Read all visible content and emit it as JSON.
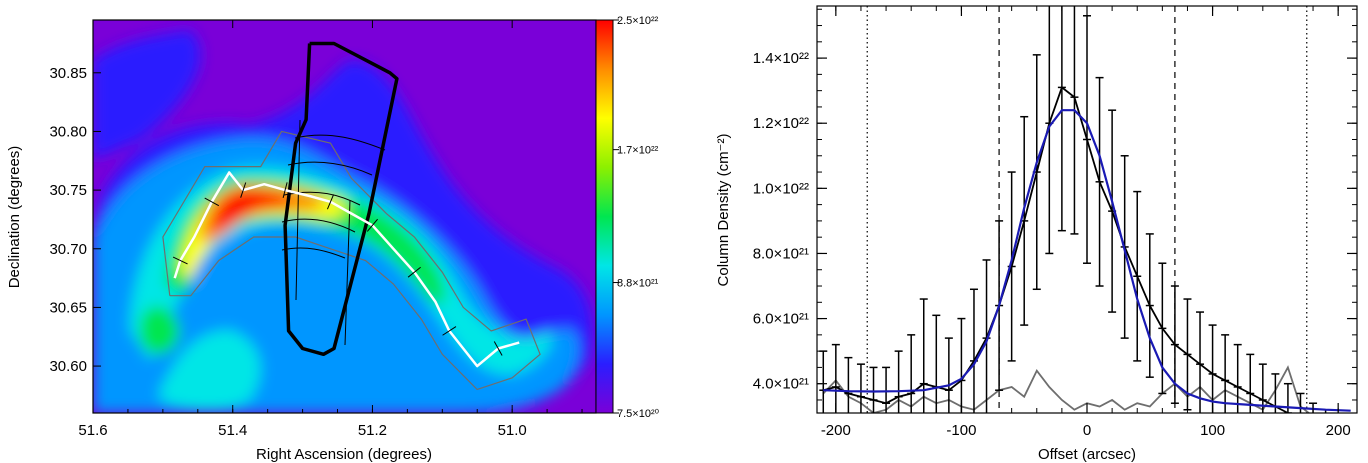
{
  "chart_data": [
    {
      "type": "heatmap",
      "xlabel": "Right Ascension (degrees)",
      "ylabel": "Declination (degrees)",
      "xlim": [
        51.6,
        50.88
      ],
      "ylim": [
        30.56,
        30.895
      ],
      "xticks": [
        51.6,
        51.4,
        51.2,
        51.0
      ],
      "xtick_labels": [
        "51.6",
        "51.4",
        "51.2",
        "51.0"
      ],
      "yticks": [
        30.6,
        30.65,
        30.7,
        30.75,
        30.8,
        30.85
      ],
      "ytick_labels": [
        "30.60",
        "30.65",
        "30.70",
        "30.75",
        "30.80",
        "30.85"
      ],
      "colorbar": {
        "min": 7.5e+20,
        "max": 2.5e+22,
        "tick_values": [
          2.5e+22,
          1.7e+22,
          8.8e+21,
          7.5e+20
        ],
        "tick_labels": [
          "2.5×10²²",
          "1.7×10²²",
          "8.8×10²¹",
          "7.5×10²⁰"
        ],
        "colors": [
          "#7a00d8",
          "#2a1eff",
          "#0096ff",
          "#00e6e6",
          "#00e650",
          "#8cf000",
          "#ffff00",
          "#ff8c00",
          "#ff0000"
        ]
      },
      "spine": [
        [
          51.483,
          30.675
        ],
        [
          51.475,
          30.69
        ],
        [
          51.455,
          30.71
        ],
        [
          51.43,
          30.74
        ],
        [
          51.405,
          30.765
        ],
        [
          51.385,
          30.75
        ],
        [
          51.355,
          30.755
        ],
        [
          51.325,
          30.75
        ],
        [
          51.29,
          30.745
        ],
        [
          51.26,
          30.74
        ],
        [
          51.23,
          30.73
        ],
        [
          51.2,
          30.72
        ],
        [
          51.17,
          30.7
        ],
        [
          51.14,
          30.68
        ],
        [
          51.11,
          30.655
        ],
        [
          51.09,
          30.63
        ],
        [
          51.05,
          30.6
        ],
        [
          51.02,
          30.615
        ],
        [
          50.99,
          30.62
        ]
      ],
      "strip_outline": [
        [
          51.29,
          30.875
        ],
        [
          51.255,
          30.875
        ],
        [
          51.175,
          30.85
        ],
        [
          51.165,
          30.845
        ],
        [
          51.205,
          30.73
        ],
        [
          51.255,
          30.615
        ],
        [
          51.27,
          30.61
        ],
        [
          51.3,
          30.615
        ],
        [
          51.32,
          30.63
        ],
        [
          51.325,
          30.72
        ],
        [
          51.31,
          30.79
        ],
        [
          51.295,
          30.81
        ],
        [
          51.29,
          30.875
        ]
      ],
      "mask_outline": [
        [
          51.49,
          30.66
        ],
        [
          51.5,
          30.71
        ],
        [
          51.44,
          30.77
        ],
        [
          51.36,
          30.77
        ],
        [
          51.33,
          30.8
        ],
        [
          51.26,
          30.79
        ],
        [
          51.23,
          30.76
        ],
        [
          51.18,
          30.73
        ],
        [
          51.14,
          30.71
        ],
        [
          51.1,
          30.68
        ],
        [
          51.07,
          30.65
        ],
        [
          51.03,
          30.63
        ],
        [
          50.98,
          30.64
        ],
        [
          50.96,
          30.61
        ],
        [
          51.0,
          30.59
        ],
        [
          51.05,
          30.58
        ],
        [
          51.1,
          30.61
        ],
        [
          51.13,
          30.64
        ],
        [
          51.17,
          30.67
        ],
        [
          51.21,
          30.69
        ],
        [
          51.26,
          30.7
        ],
        [
          51.31,
          30.71
        ],
        [
          51.37,
          30.71
        ],
        [
          51.42,
          30.69
        ],
        [
          51.46,
          30.66
        ],
        [
          51.49,
          30.66
        ]
      ]
    },
    {
      "type": "line",
      "xlabel": "Offset (arcsec)",
      "ylabel": "Column Density (cm⁻²)",
      "xlim": [
        -215,
        215
      ],
      "ylim": [
        3.1e+21,
        1.56e+22
      ],
      "xticks": [
        -200,
        -100,
        0,
        100,
        200
      ],
      "xtick_labels": [
        "-200",
        "-100",
        "0",
        "100",
        "200"
      ],
      "yticks": [
        4e+21,
        6e+21,
        8e+21,
        1e+22,
        1.2e+22,
        1.4e+22
      ],
      "ytick_labels": [
        "4.0×10²¹",
        "6.0×10²¹",
        "8.0×10²¹",
        "1.0×10²²",
        "1.2×10²²",
        "1.4×10²²"
      ],
      "vlines_dashed": [
        -70,
        70
      ],
      "vlines_dotted": [
        -175,
        175
      ],
      "series": [
        {
          "color": "#000000",
          "x": [
            -210,
            -200,
            -190,
            -180,
            -170,
            -160,
            -150,
            -140,
            -130,
            -120,
            -110,
            -100,
            -90,
            -80,
            -70,
            -60,
            -50,
            -40,
            -30,
            -20,
            -10,
            0,
            10,
            20,
            30,
            40,
            50,
            60,
            70,
            80,
            90,
            100,
            110,
            120,
            130,
            140,
            150,
            160,
            170,
            180,
            190,
            200
          ],
          "y": [
            3.8e+21,
            3.9e+21,
            3.7e+21,
            3.6e+21,
            3.5e+21,
            3.4e+21,
            3.6e+21,
            3.7e+21,
            4e+21,
            3.9e+21,
            3.8e+21,
            4.1e+21,
            4.7e+21,
            5.4e+21,
            6.4e+21,
            7.6e+21,
            9e+21,
            1.05e+22,
            1.2e+22,
            1.31e+22,
            1.28e+22,
            1.15e+22,
            1.02e+22,
            9.3e+21,
            8.2e+21,
            7.3e+21,
            6.4e+21,
            5.7e+21,
            5.2e+21,
            4.9e+21,
            4.6e+21,
            4.3e+21,
            4.1e+21,
            3.9e+21,
            3.7e+21,
            3.5e+21,
            3.3e+21,
            3.1e+21,
            3e+21,
            2.9e+21,
            2.8e+21,
            2.7e+21
          ],
          "yerr": [
            1.2e+21,
            1.3e+21,
            1.1e+21,
            1e+21,
            1e+21,
            1.1e+21,
            1.4e+21,
            1.8e+21,
            2.6e+21,
            2.2e+21,
            1.6e+21,
            1.9e+21,
            2.2e+21,
            2.4e+21,
            2.6e+21,
            2.9e+21,
            3.2e+21,
            3.6e+21,
            4e+21,
            4.4e+21,
            4.2e+21,
            3.8e+21,
            3.2e+21,
            3.1e+21,
            2.8e+21,
            2.6e+21,
            2.2e+21,
            2e+21,
            1.8e+21,
            1.7e+21,
            1.6e+21,
            1.5e+21,
            1.4e+21,
            1.3e+21,
            1.2e+21,
            1.1e+21,
            1e+21,
            9e+20,
            7e+20,
            5e+20,
            4e+20,
            3e+20
          ]
        },
        {
          "color": "#6e6e6e",
          "x": [
            -210,
            -200,
            -190,
            -180,
            -170,
            -160,
            -150,
            -140,
            -130,
            -120,
            -110,
            -100,
            -90,
            -80,
            -70,
            -60,
            -50,
            -40,
            -30,
            -20,
            -10,
            0,
            10,
            20,
            30,
            40,
            50,
            60,
            70,
            80,
            90,
            100,
            110,
            120,
            130,
            140,
            150,
            160,
            170,
            180,
            190,
            200
          ],
          "y": [
            3.7e+21,
            4.1e+21,
            3.6e+21,
            3.4e+21,
            3.1e+21,
            3.2e+21,
            3.5e+21,
            3.3e+21,
            3.6e+21,
            3.4e+21,
            3.5e+21,
            3.3e+21,
            3.2e+21,
            3.5e+21,
            3.8e+21,
            3.9e+21,
            3.6e+21,
            4.4e+21,
            3.9e+21,
            3.5e+21,
            3.2e+21,
            3.4e+21,
            3.3e+21,
            3.5e+21,
            3.2e+21,
            3.4e+21,
            3.3e+21,
            3.7e+21,
            4e+21,
            3.6e+21,
            3.9e+21,
            3.5e+21,
            3.8e+21,
            3.6e+21,
            3.4e+21,
            3.2e+21,
            3.8e+21,
            4.5e+21,
            3.3e+21,
            3e+21,
            2.9e+21,
            2.7e+21
          ]
        },
        {
          "color": "#1a1ab4",
          "x": [
            -210,
            -190,
            -170,
            -150,
            -130,
            -110,
            -100,
            -90,
            -80,
            -70,
            -60,
            -50,
            -40,
            -30,
            -20,
            -10,
            0,
            10,
            20,
            30,
            40,
            50,
            60,
            70,
            80,
            90,
            100,
            110,
            130,
            150,
            170,
            190,
            210
          ],
          "y": [
            3.8e+21,
            3.77e+21,
            3.76e+21,
            3.77e+21,
            3.8e+21,
            3.95e+21,
            4.15e+21,
            4.6e+21,
            5.3e+21,
            6.4e+21,
            7.8e+21,
            9.4e+21,
            1.08e+22,
            1.19e+22,
            1.24e+22,
            1.24e+22,
            1.2e+22,
            1.1e+22,
            9.6e+21,
            8.1e+21,
            6.6e+21,
            5.4e+21,
            4.5e+21,
            4e+21,
            3.7e+21,
            3.55e+21,
            3.45e+21,
            3.4e+21,
            3.35e+21,
            3.3e+21,
            3.25e+21,
            3.2e+21,
            3.17e+21
          ]
        }
      ]
    }
  ]
}
